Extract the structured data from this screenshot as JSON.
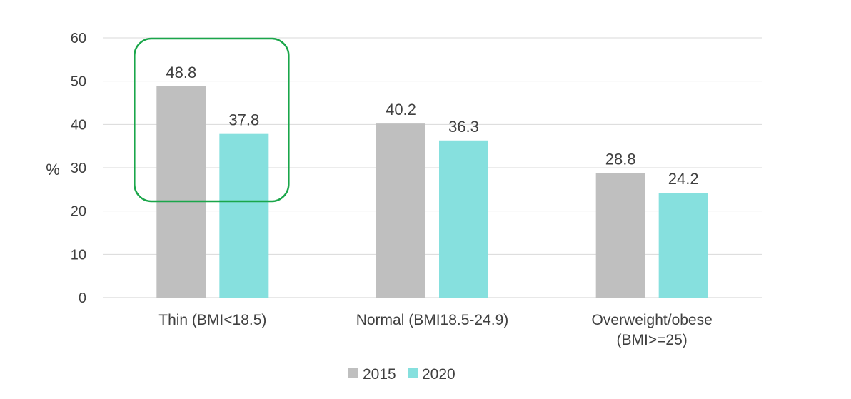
{
  "chart_data": {
    "type": "bar",
    "categories": [
      [
        "Thin (BMI<18.5)"
      ],
      [
        "Normal (BMI18.5-24.9)"
      ],
      [
        "Overweight/obese",
        "(BMI>=25)"
      ]
    ],
    "series": [
      {
        "name": "2015",
        "color": "#bfbfbf",
        "values": [
          48.8,
          40.2,
          28.8
        ]
      },
      {
        "name": "2020",
        "color": "#86e0de",
        "values": [
          37.8,
          36.3,
          24.2
        ]
      }
    ],
    "ylabel": "%",
    "ylim": [
      0,
      60
    ],
    "yticks": [
      0,
      10,
      20,
      30,
      40,
      50,
      60
    ],
    "grid": true,
    "legend_position": "bottom",
    "highlight": {
      "category_index": 0,
      "color": "#1aa64a"
    }
  }
}
